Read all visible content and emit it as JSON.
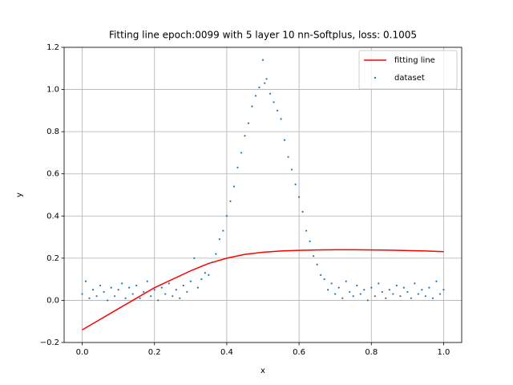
{
  "chart_data": {
    "type": "line",
    "title": "Fitting line epoch:0099 with 5 layer 10 nn-Softplus, loss: 0.1005",
    "x_label": "x",
    "y_label": "y",
    "xlim": [
      -0.05,
      1.05
    ],
    "ylim": [
      -0.2,
      1.2
    ],
    "xticks": [
      {
        "value": 0,
        "label": "0.0"
      },
      {
        "value": 0.2,
        "label": "0.2"
      },
      {
        "value": 0.4,
        "label": "0.4"
      },
      {
        "value": 0.6,
        "label": "0.6"
      },
      {
        "value": 0.8,
        "label": "0.8"
      },
      {
        "value": 1,
        "label": "1.0"
      }
    ],
    "yticks": [
      {
        "value": -0.2,
        "label": "−0.2"
      },
      {
        "value": 0,
        "label": "0.0"
      },
      {
        "value": 0.2,
        "label": "0.2"
      },
      {
        "value": 0.4,
        "label": "0.4"
      },
      {
        "value": 0.6,
        "label": "0.6"
      },
      {
        "value": 0.8,
        "label": "0.8"
      },
      {
        "value": 1,
        "label": "1.0"
      },
      {
        "value": 1.2,
        "label": "1.2"
      }
    ],
    "grid": true,
    "legend": "upper right",
    "series": [
      {
        "name": "fitting line",
        "type": "line",
        "color": "#ff0000",
        "x": [
          0,
          0.05,
          0.1,
          0.15,
          0.2,
          0.25,
          0.3,
          0.35,
          0.4,
          0.45,
          0.5,
          0.55,
          0.6,
          0.65,
          0.7,
          0.75,
          0.8,
          0.85,
          0.9,
          0.95,
          1
        ],
        "values": [
          -0.14,
          -0.09,
          -0.04,
          0.01,
          0.06,
          0.1,
          0.14,
          0.175,
          0.2,
          0.218,
          0.228,
          0.234,
          0.237,
          0.239,
          0.24,
          0.24,
          0.239,
          0.238,
          0.236,
          0.234,
          0.231
        ]
      },
      {
        "name": "dataset",
        "type": "scatter",
        "color": "#1f77b4",
        "x": [
          0,
          0.01,
          0.02,
          0.03,
          0.04,
          0.05,
          0.06,
          0.07,
          0.08,
          0.09,
          0.1,
          0.11,
          0.12,
          0.13,
          0.14,
          0.15,
          0.16,
          0.17,
          0.18,
          0.19,
          0.2,
          0.21,
          0.22,
          0.23,
          0.24,
          0.25,
          0.26,
          0.27,
          0.28,
          0.29,
          0.3,
          0.31,
          0.32,
          0.33,
          0.34,
          0.35,
          0.36,
          0.37,
          0.38,
          0.39,
          0.4,
          0.41,
          0.42,
          0.43,
          0.44,
          0.45,
          0.46,
          0.47,
          0.48,
          0.49,
          0.5,
          0.505,
          0.51,
          0.52,
          0.53,
          0.54,
          0.55,
          0.56,
          0.57,
          0.58,
          0.59,
          0.6,
          0.61,
          0.62,
          0.63,
          0.64,
          0.65,
          0.66,
          0.67,
          0.68,
          0.69,
          0.7,
          0.71,
          0.72,
          0.73,
          0.74,
          0.75,
          0.76,
          0.77,
          0.78,
          0.79,
          0.8,
          0.81,
          0.82,
          0.83,
          0.84,
          0.85,
          0.86,
          0.87,
          0.88,
          0.89,
          0.9,
          0.91,
          0.92,
          0.93,
          0.94,
          0.95,
          0.96,
          0.97,
          0.98,
          0.99,
          1
        ],
        "values": [
          0.03,
          0.09,
          0.01,
          0.05,
          0.02,
          0.07,
          0.04,
          0,
          0.06,
          0.02,
          0.05,
          0.08,
          0.01,
          0.06,
          0.03,
          0.07,
          0.01,
          0.04,
          0.09,
          0.02,
          0.05,
          0,
          0.06,
          0.03,
          0.08,
          0.02,
          0.05,
          0.01,
          0.07,
          0.04,
          0.09,
          0.2,
          0.06,
          0.1,
          0.13,
          0.12,
          0.18,
          0.22,
          0.29,
          0.33,
          0.4,
          0.47,
          0.54,
          0.63,
          0.7,
          0.78,
          0.84,
          0.92,
          0.97,
          1.01,
          1.14,
          1.03,
          1.05,
          0.98,
          0.94,
          0.9,
          0.86,
          0.76,
          0.68,
          0.62,
          0.55,
          0.49,
          0.42,
          0.33,
          0.28,
          0.21,
          0.17,
          0.12,
          0.1,
          0.05,
          0.08,
          0.03,
          0.06,
          0.01,
          0.09,
          0.04,
          0.02,
          0.07,
          0.03,
          0.05,
          0,
          0.06,
          0.02,
          0.08,
          0.04,
          0.01,
          0.05,
          0.03,
          0.07,
          0.02,
          0.06,
          0.04,
          0.01,
          0.08,
          0.03,
          0.05,
          0.02,
          0.06,
          0.01,
          0.09,
          0.03,
          0.05
        ]
      }
    ]
  }
}
